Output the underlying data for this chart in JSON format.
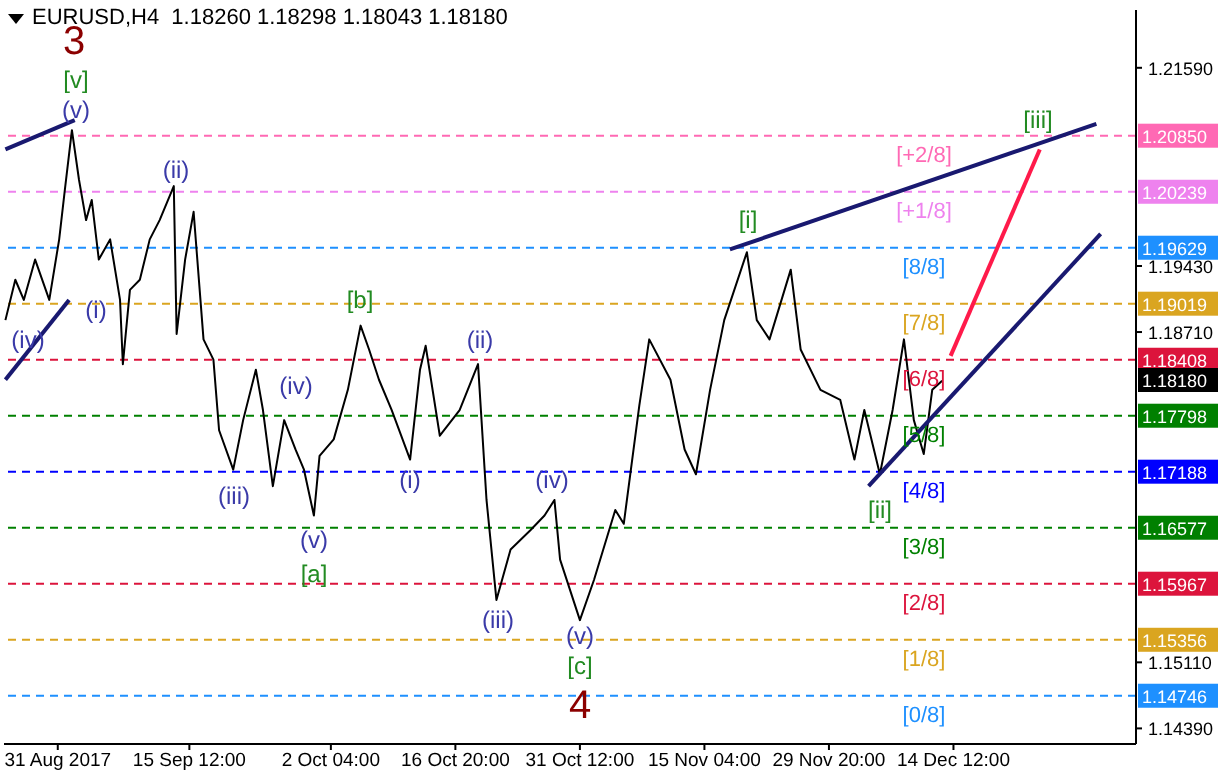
{
  "chart_data": {
    "type": "line",
    "title": "EURUSD,H4  1.18260 1.18298 1.18043 1.18180",
    "xlim": [
      "2017-08-24T16:00",
      "2018-01-05T00:00"
    ],
    "xticks": [
      {
        "value": "2017-08-31T00:00",
        "label": "31 Aug 2017"
      },
      {
        "value": "2017-09-15T12:00",
        "label": "15 Sep 12:00"
      },
      {
        "value": "2017-10-02T04:00",
        "label": "2 Oct 04:00"
      },
      {
        "value": "2017-10-16T20:00",
        "label": "16 Oct 20:00"
      },
      {
        "value": "2017-10-31T12:00",
        "label": "31 Oct 12:00"
      },
      {
        "value": "2017-11-15T04:00",
        "label": "15 Nov 04:00"
      },
      {
        "value": "2017-11-29T20:00",
        "label": "29 Nov 20:00"
      },
      {
        "value": "2017-12-14T12:00",
        "label": "14 Dec 12:00"
      }
    ],
    "ylim": [
      1.1422,
      1.2222
    ],
    "yticks": [
      {
        "value": 1.2159,
        "label": "1.21590"
      },
      {
        "value": 1.1943,
        "label": "1.19430"
      },
      {
        "value": 1.1871,
        "label": "1.18710"
      },
      {
        "value": 1.1511,
        "label": "1.15110"
      },
      {
        "value": 1.1439,
        "label": "1.14390"
      }
    ],
    "series": [
      {
        "color": "#000000",
        "x": [
          "2017-08-24T20:00",
          "2017-08-26T00:00",
          "2017-08-27T00:00",
          "2017-08-28T08:00",
          "2017-08-30T00:00",
          "2017-08-31T04:00",
          "2017-08-31T20:00",
          "2017-09-01T16:00",
          "2017-09-02T12:00",
          "2017-09-03T08:00",
          "2017-09-04T00:00",
          "2017-09-04T20:00",
          "2017-09-06T04:00",
          "2017-09-07T08:00",
          "2017-09-07T16:00",
          "2017-09-08T12:00",
          "2017-09-09T16:00",
          "2017-09-10T20:00",
          "2017-09-12T00:00",
          "2017-09-13T16:00",
          "2017-09-14T00:00",
          "2017-09-15T00:00",
          "2017-09-16T00:00",
          "2017-09-17T04:00",
          "2017-09-18T08:00",
          "2017-09-19T00:00",
          "2017-09-20T16:00",
          "2017-09-21T20:00",
          "2017-09-23T08:00",
          "2017-09-24T04:00",
          "2017-09-25T08:00",
          "2017-09-26T16:00",
          "2017-09-28T00:00",
          "2017-09-29T00:00",
          "2017-09-30T04:00",
          "2017-09-30T20:00",
          "2017-10-02T12:00",
          "2017-10-04T04:00",
          "2017-10-05T16:00",
          "2017-10-06T16:00",
          "2017-10-07T20:00",
          "2017-10-09T08:00",
          "2017-10-11T12:00",
          "2017-10-12T16:00",
          "2017-10-13T08:00",
          "2017-10-15T00:00",
          "2017-10-17T08:00",
          "2017-10-19T12:00",
          "2017-10-20T12:00",
          "2017-10-21T16:00",
          "2017-10-23T08:00",
          "2017-10-25T16:00",
          "2017-10-27T08:00",
          "2017-10-28T12:00",
          "2017-10-29T04:00",
          "2017-10-31T12:00",
          "2017-11-02T04:00",
          "2017-11-04T16:00",
          "2017-11-05T16:00",
          "2017-11-07T12:00",
          "2017-11-08T16:00",
          "2017-11-11T04:00",
          "2017-11-12T20:00",
          "2017-11-14T04:00",
          "2017-11-15T20:00",
          "2017-11-17T12:00",
          "2017-11-20T04:00",
          "2017-11-21T08:00",
          "2017-11-22T20:00",
          "2017-11-25T08:00",
          "2017-11-26T12:00",
          "2017-11-28T20:00",
          "2017-12-01T04:00",
          "2017-12-02T20:00",
          "2017-12-04T00:00",
          "2017-12-05T20:00",
          "2017-12-07T08:00",
          "2017-12-08T16:00",
          "2017-12-09T20:00",
          "2017-12-11T00:00",
          "2017-12-12T00:00",
          "2017-12-13T04:00"
        ],
        "values": [
          1.1884,
          1.1928,
          1.1906,
          1.195,
          1.1906,
          1.1972,
          1.2026,
          1.2091,
          1.2037,
          1.1993,
          1.2015,
          1.195,
          1.1972,
          1.1906,
          1.1836,
          1.1917,
          1.1928,
          1.1972,
          1.1993,
          1.203,
          1.1869,
          1.195,
          1.2002,
          1.1863,
          1.1841,
          1.1764,
          1.1721,
          1.1775,
          1.183,
          1.1786,
          1.1703,
          1.1775,
          1.1743,
          1.1721,
          1.1671,
          1.1736,
          1.1754,
          1.1808,
          1.1878,
          1.1852,
          1.1819,
          1.1786,
          1.1732,
          1.183,
          1.1856,
          1.1758,
          1.1786,
          1.1836,
          1.1688,
          1.1579,
          1.1634,
          1.1655,
          1.1671,
          1.1688,
          1.1623,
          1.1557,
          1.1601,
          1.1677,
          1.1662,
          1.1791,
          1.1863,
          1.1819,
          1.1743,
          1.1716,
          1.1808,
          1.1884,
          1.1958,
          1.1884,
          1.1863,
          1.1939,
          1.1852,
          1.1808,
          1.1797,
          1.1732,
          1.1786,
          1.1716,
          1.1786,
          1.1863,
          1.1775,
          1.1738,
          1.1808,
          1.1818
        ]
      },
      {
        "color": "#191970",
        "x": [
          "2017-08-24T20:00",
          "2017-09-02T00:00"
        ],
        "values": [
          1.207,
          1.2102
        ]
      },
      {
        "color": "#191970",
        "x": [
          "2017-08-24T20:00",
          "2017-09-01T08:00"
        ],
        "values": [
          1.1819,
          1.1906
        ]
      },
      {
        "color": "#191970",
        "x": [
          "2017-11-18T04:00",
          "2017-12-31T08:00"
        ],
        "values": [
          1.1961,
          1.2098
        ]
      },
      {
        "color": "#191970",
        "x": [
          "2017-12-04T12:00",
          "2017-12-31T20:00"
        ],
        "values": [
          1.1703,
          1.1978
        ]
      },
      {
        "color": "#ff1a4a",
        "x": [
          "2017-12-14T04:00",
          "2017-12-24T16:00"
        ],
        "values": [
          1.1845,
          1.207
        ]
      }
    ],
    "ref_lines": [
      {
        "axis": "y",
        "value": 1.2085,
        "label": "1.20850",
        "color": "#ff69b4",
        "line_style": "dashed"
      },
      {
        "axis": "y",
        "value": 1.20239,
        "label": "1.20239",
        "color": "#ee82ee",
        "line_style": "dashed"
      },
      {
        "axis": "y",
        "value": 1.19629,
        "label": "1.19629",
        "color": "#1e90ff",
        "line_style": "dashed"
      },
      {
        "axis": "y",
        "value": 1.19019,
        "label": "1.19019",
        "color": "#daa520",
        "line_style": "dashed"
      },
      {
        "axis": "y",
        "value": 1.18408,
        "label": "1.18408",
        "color": "#dc143c",
        "line_style": "dashed"
      },
      {
        "axis": "y",
        "value": 1.17798,
        "label": "1.17798",
        "color": "#008000",
        "line_style": "dashed"
      },
      {
        "axis": "y",
        "value": 1.17188,
        "label": "1.17188",
        "color": "#0000ff",
        "line_style": "dashed"
      },
      {
        "axis": "y",
        "value": 1.16577,
        "label": "1.16577",
        "color": "#008000",
        "line_style": "dashed"
      },
      {
        "axis": "y",
        "value": 1.15967,
        "label": "1.15967",
        "color": "#dc143c",
        "line_style": "dashed"
      },
      {
        "axis": "y",
        "value": 1.15356,
        "label": "1.15356",
        "color": "#daa520",
        "line_style": "dashed"
      },
      {
        "axis": "y",
        "value": 1.14746,
        "label": "1.14746",
        "color": "#1e90ff",
        "line_style": "dashed"
      }
    ],
    "annotations": [
      "[+2/8]",
      "[+1/8]",
      "[8/8]",
      "[7/8]",
      "[6/8]",
      "[5/8]",
      "[4/8]",
      "[3/8]",
      "[2/8]",
      "[1/8]",
      "[0/8]",
      "1.18180",
      "3",
      "[v]",
      "(v)",
      "(ii)",
      "(i)",
      "(iv)",
      "[b]",
      "(ii)",
      "(iv)",
      "(iv)",
      "(iii)",
      "(i)",
      "(v)",
      "[a]",
      "(iii)",
      "(v)",
      "[c]",
      "4",
      "[i]",
      "[ii]",
      "[iii]"
    ]
  }
}
